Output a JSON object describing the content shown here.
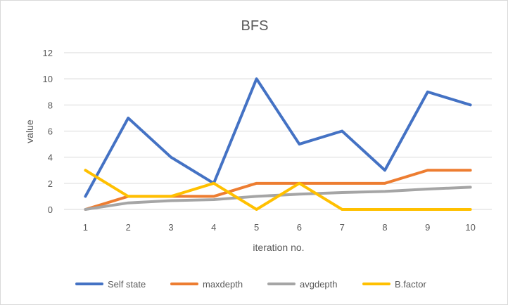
{
  "chart_data": {
    "type": "line",
    "title": "BFS",
    "xlabel": "iteration no.",
    "ylabel": "value",
    "categories": [
      "1",
      "2",
      "3",
      "4",
      "5",
      "6",
      "7",
      "8",
      "9",
      "10"
    ],
    "ylim": [
      0,
      12
    ],
    "yticks": [
      "0",
      "2",
      "4",
      "6",
      "8",
      "10",
      "12"
    ],
    "grid": true,
    "legend_position": "bottom",
    "series": [
      {
        "name": "Self state",
        "color": "#4472c4",
        "values": [
          1,
          7,
          4,
          2,
          10,
          5,
          6,
          3,
          9,
          8
        ]
      },
      {
        "name": "maxdepth",
        "color": "#ed7d31",
        "values": [
          0,
          1,
          1,
          1,
          2,
          2,
          2,
          2,
          3,
          3
        ]
      },
      {
        "name": "avgdepth",
        "color": "#a5a5a5",
        "values": [
          0,
          0.5,
          0.67,
          0.75,
          1.0,
          1.17,
          1.29,
          1.38,
          1.56,
          1.7
        ]
      },
      {
        "name": "B.factor",
        "color": "#ffc000",
        "values": [
          3,
          1,
          1,
          2,
          0,
          2,
          0,
          0,
          0,
          0
        ]
      }
    ]
  }
}
